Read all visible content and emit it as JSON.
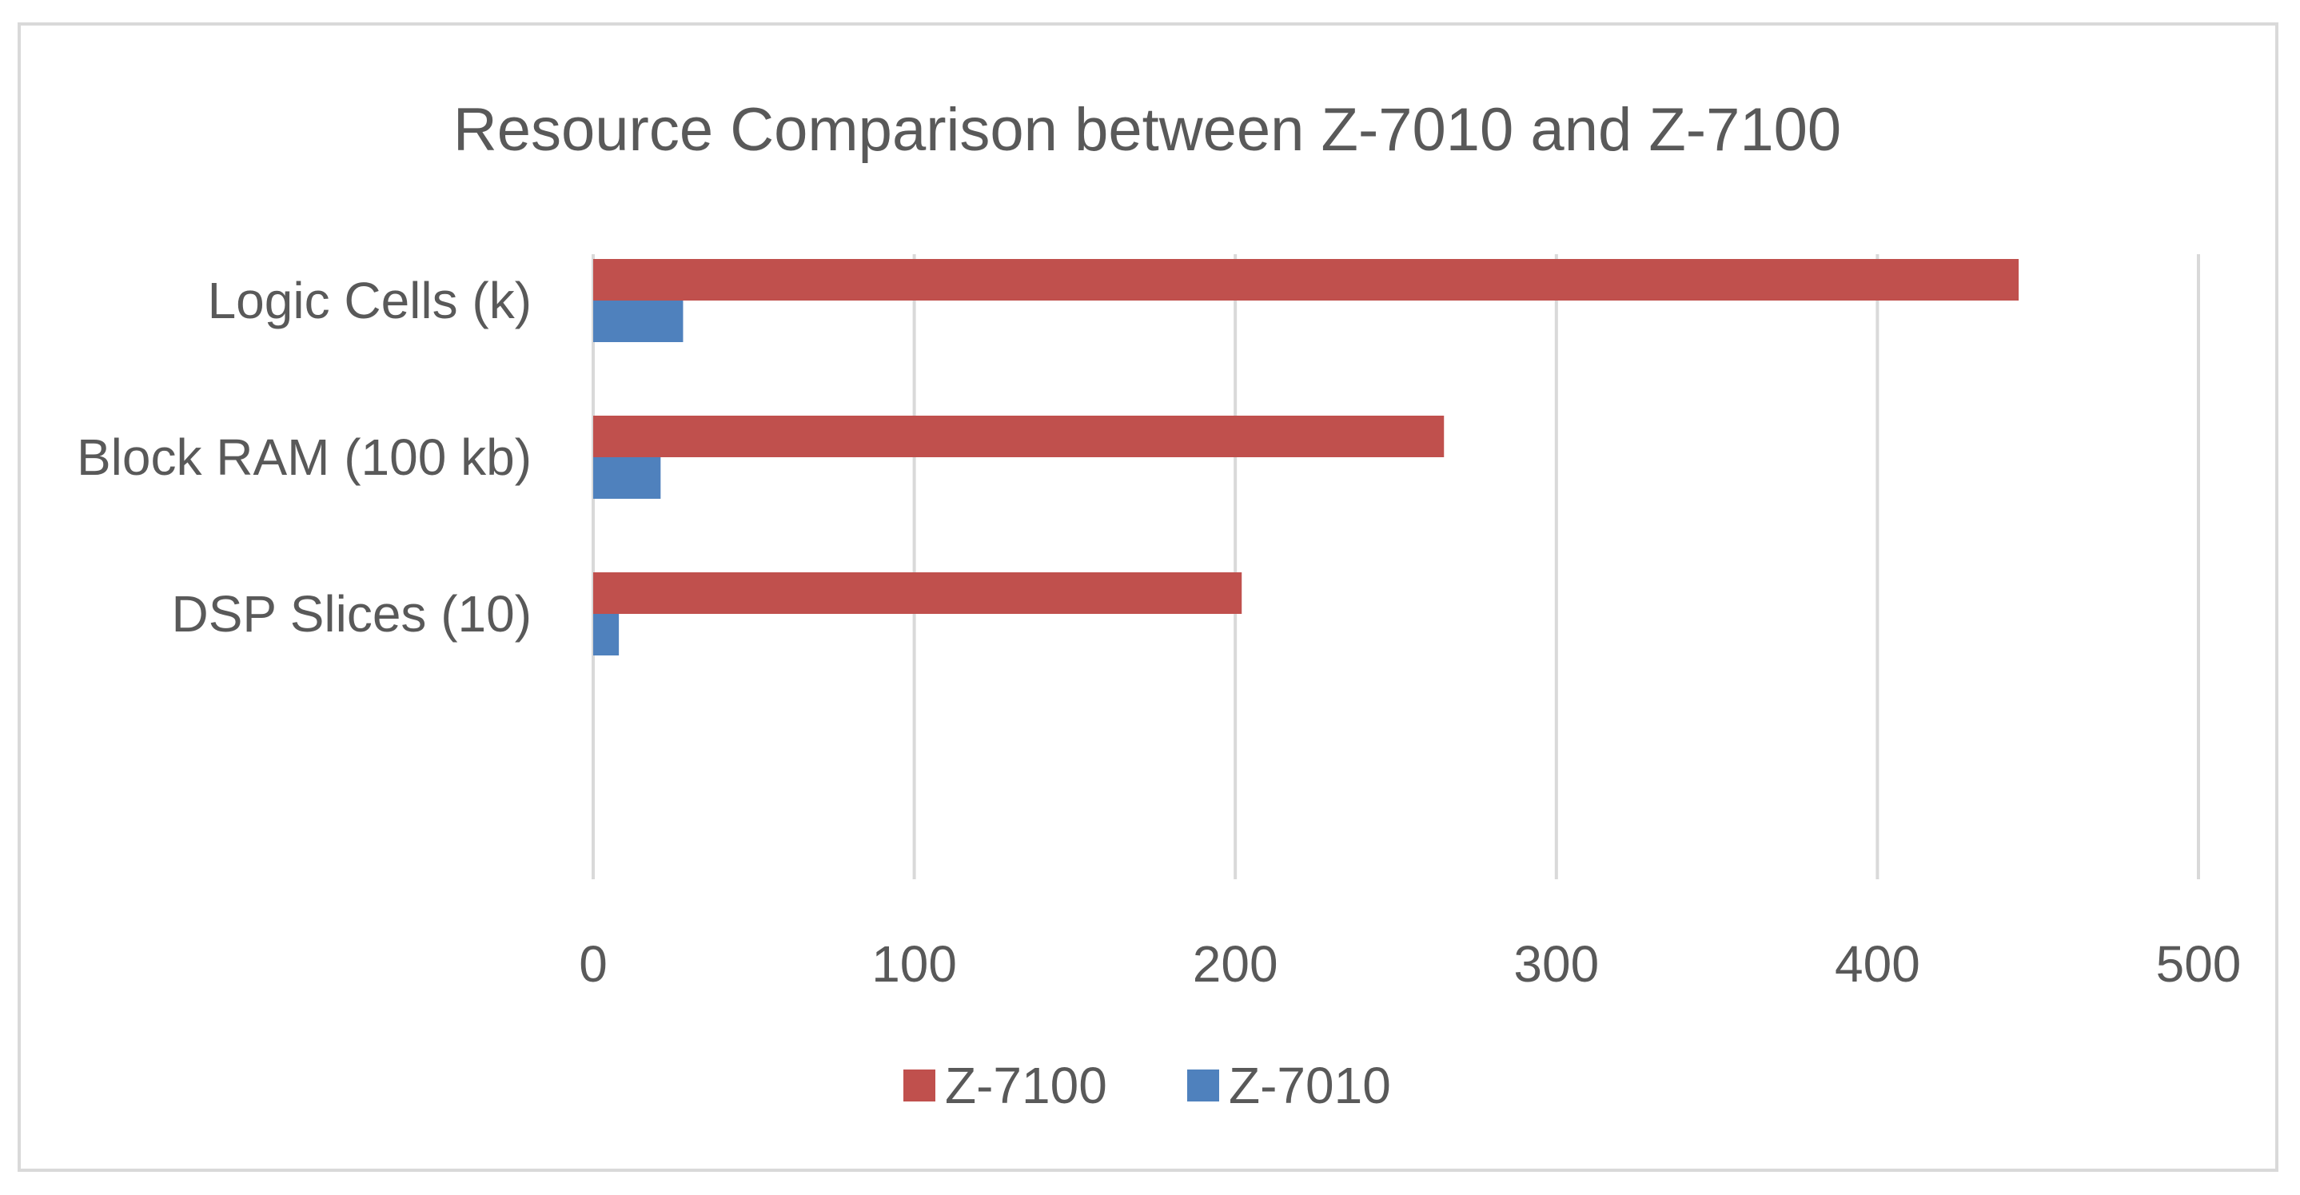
{
  "chart_data": {
    "type": "bar",
    "orientation": "horizontal",
    "title": "Resource Comparison between Z-7010 and Z-7100",
    "categories": [
      "Logic Cells (k)",
      "Block RAM (100 kb)",
      "DSP Slices (10)"
    ],
    "series": [
      {
        "name": "Z-7100",
        "color": "#c0504d",
        "values": [
          444,
          265,
          202
        ]
      },
      {
        "name": "Z-7010",
        "color": "#4f81bd",
        "values": [
          28,
          21,
          8
        ]
      }
    ],
    "xlim": [
      0,
      500
    ],
    "x_ticks": [
      0,
      100,
      200,
      300,
      400,
      500
    ],
    "grid": true,
    "legend_position": "bottom"
  }
}
